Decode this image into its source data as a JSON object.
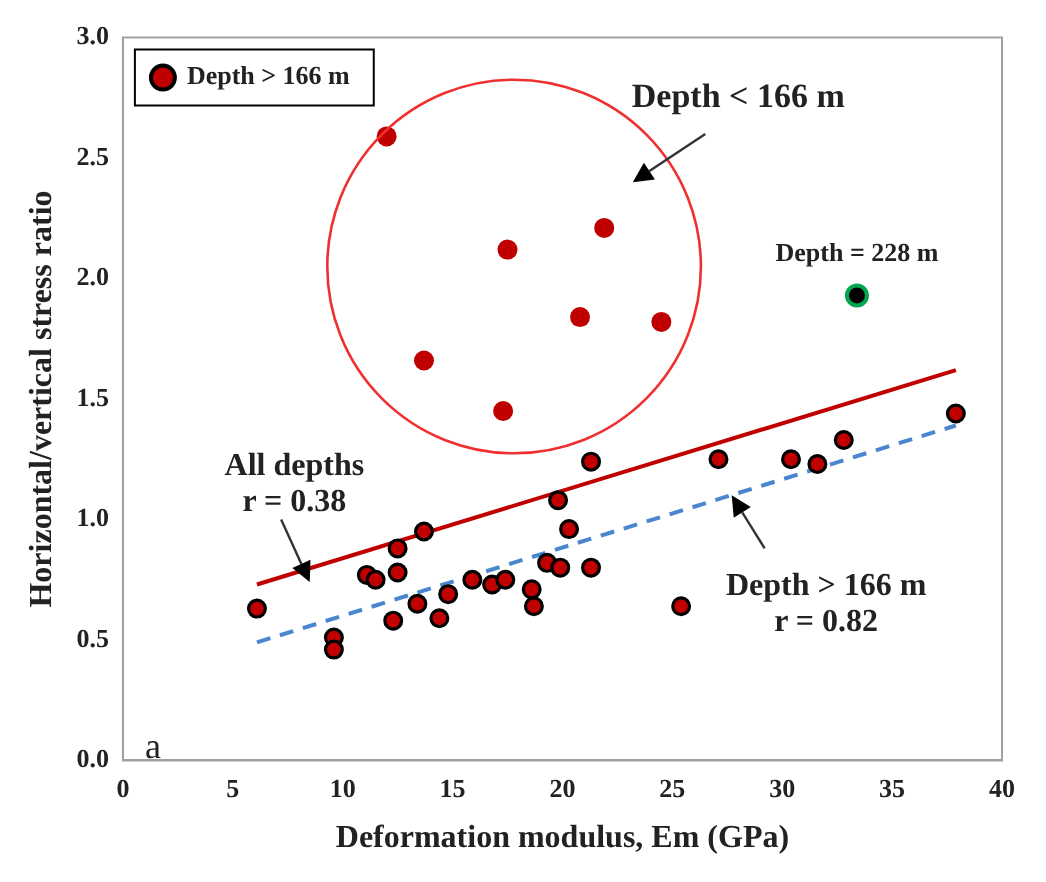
{
  "chart_data": {
    "type": "scatter",
    "xlabel": "Deformation modulus, Em (GPa)",
    "ylabel": "Horizontal/vertical stress ratio",
    "xlim": [
      0,
      40
    ],
    "xticks": [
      0,
      5,
      10,
      15,
      20,
      25,
      30,
      35,
      40
    ],
    "ylim": [
      0,
      3
    ],
    "yticks": [
      {
        "value": 0,
        "label": "0.0"
      },
      {
        "value": 0.5,
        "label": "0.5"
      },
      {
        "value": 1,
        "label": "1.0"
      },
      {
        "value": 1.5,
        "label": "1.5"
      },
      {
        "value": 2,
        "label": "2.0"
      },
      {
        "value": 2.5,
        "label": "2.5"
      },
      {
        "value": 3,
        "label": "3.0"
      }
    ],
    "grid": false,
    "legend": "top left",
    "marker": "circle",
    "series": [
      {
        "name": "Depth > 166 m",
        "color": "#c00000",
        "x": [
          6.1,
          9.6,
          9.6,
          11.1,
          11.5,
          12.5,
          12.5,
          12.3,
          13.4,
          13.7,
          14.4,
          14.8,
          15.9,
          16.8,
          17.4,
          18.6,
          18.7,
          19.3,
          19.9,
          19.8,
          20.3,
          21.3,
          21.3,
          25.4,
          27.1,
          30.4,
          31.6,
          32.8,
          37.9
        ],
        "values": [
          0.63,
          0.51,
          0.46,
          0.77,
          0.75,
          0.88,
          0.78,
          0.58,
          0.65,
          0.95,
          0.59,
          0.69,
          0.75,
          0.73,
          0.75,
          0.71,
          0.64,
          0.82,
          0.8,
          1.08,
          0.96,
          1.24,
          0.8,
          0.64,
          1.25,
          1.25,
          1.23,
          1.33,
          1.44
        ]
      },
      {
        "color": "#c00000",
        "x": [
          12.0,
          21.9,
          17.5,
          20.8,
          24.5,
          13.7,
          17.3
        ],
        "values": [
          2.59,
          2.21,
          2.12,
          1.84,
          1.82,
          1.66,
          1.45
        ]
      },
      {
        "color": "#00a550",
        "x": [
          33.4
        ],
        "values": [
          1.93
        ]
      },
      {
        "type": "line",
        "color": "#c00000",
        "line_style": "solid",
        "marker": "none",
        "x": [
          6.1,
          37.9
        ],
        "values": [
          0.73,
          1.62
        ]
      },
      {
        "type": "line",
        "color": "#4a86d0",
        "line_style": "dashed",
        "marker": "none",
        "x": [
          6.1,
          37.9
        ],
        "values": [
          0.49,
          1.39
        ]
      }
    ],
    "annotations": [
      "Depth < 166 m",
      {
        "text": "Depth = 228 m",
        "x": 33.4,
        "y": 1.93
      },
      "All depths",
      "r = 0.38",
      "Depth > 166 m",
      "r = 0.82",
      "a"
    ]
  }
}
